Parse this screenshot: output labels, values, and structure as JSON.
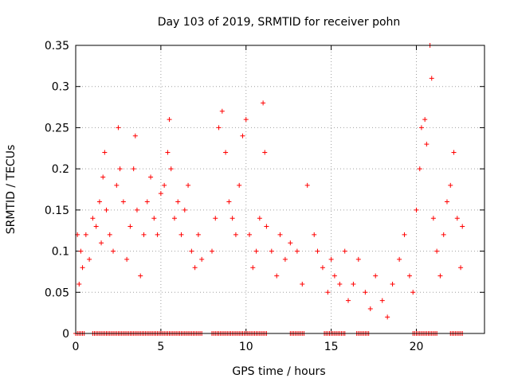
{
  "chart_data": {
    "type": "scatter",
    "title": "Day 103 of 2019, SRMTID for receiver pohn",
    "xlabel": "GPS time / hours",
    "ylabel": "SRMTID / TECUs",
    "xlim": [
      0,
      24
    ],
    "ylim": [
      0,
      0.35
    ],
    "xticks": [
      "0",
      "5",
      "10",
      "15",
      "20"
    ],
    "yticks": [
      "0",
      "0.05",
      "0.1",
      "0.15",
      "0.2",
      "0.25",
      "0.3",
      "0.35"
    ],
    "grid": true,
    "marker": "plus",
    "series": [
      {
        "name": "SRMTID",
        "color": "#ff0000",
        "points": [
          [
            0.1,
            0.12
          ],
          [
            0.2,
            0.06
          ],
          [
            0.3,
            0.1
          ],
          [
            0.4,
            0.08
          ],
          [
            0.6,
            0.12
          ],
          [
            0.8,
            0.09
          ],
          [
            1.0,
            0.14
          ],
          [
            1.2,
            0.13
          ],
          [
            1.4,
            0.16
          ],
          [
            1.5,
            0.11
          ],
          [
            1.6,
            0.19
          ],
          [
            1.7,
            0.22
          ],
          [
            1.8,
            0.15
          ],
          [
            2.0,
            0.12
          ],
          [
            2.2,
            0.1
          ],
          [
            2.4,
            0.18
          ],
          [
            2.5,
            0.25
          ],
          [
            2.6,
            0.2
          ],
          [
            2.8,
            0.16
          ],
          [
            3.0,
            0.09
          ],
          [
            3.2,
            0.13
          ],
          [
            3.4,
            0.2
          ],
          [
            3.5,
            0.24
          ],
          [
            3.6,
            0.15
          ],
          [
            3.8,
            0.07
          ],
          [
            4.0,
            0.12
          ],
          [
            4.2,
            0.16
          ],
          [
            4.4,
            0.19
          ],
          [
            4.6,
            0.14
          ],
          [
            4.8,
            0.12
          ],
          [
            5.0,
            0.17
          ],
          [
            5.2,
            0.18
          ],
          [
            5.4,
            0.22
          ],
          [
            5.5,
            0.26
          ],
          [
            5.6,
            0.2
          ],
          [
            5.8,
            0.14
          ],
          [
            6.0,
            0.16
          ],
          [
            6.2,
            0.12
          ],
          [
            6.4,
            0.15
          ],
          [
            6.6,
            0.18
          ],
          [
            6.8,
            0.1
          ],
          [
            7.0,
            0.08
          ],
          [
            7.2,
            0.12
          ],
          [
            7.4,
            0.09
          ],
          [
            8.0,
            0.1
          ],
          [
            8.2,
            0.14
          ],
          [
            8.4,
            0.25
          ],
          [
            8.6,
            0.27
          ],
          [
            8.8,
            0.22
          ],
          [
            9.0,
            0.16
          ],
          [
            9.2,
            0.14
          ],
          [
            9.4,
            0.12
          ],
          [
            9.6,
            0.18
          ],
          [
            9.8,
            0.24
          ],
          [
            10.0,
            0.26
          ],
          [
            10.2,
            0.12
          ],
          [
            10.4,
            0.08
          ],
          [
            10.6,
            0.1
          ],
          [
            10.8,
            0.14
          ],
          [
            11.0,
            0.28
          ],
          [
            11.1,
            0.22
          ],
          [
            11.2,
            0.13
          ],
          [
            11.5,
            0.1
          ],
          [
            11.8,
            0.07
          ],
          [
            12.0,
            0.12
          ],
          [
            12.3,
            0.09
          ],
          [
            12.6,
            0.11
          ],
          [
            13.0,
            0.1
          ],
          [
            13.3,
            0.06
          ],
          [
            13.6,
            0.18
          ],
          [
            14.0,
            0.12
          ],
          [
            14.2,
            0.1
          ],
          [
            14.5,
            0.08
          ],
          [
            14.8,
            0.05
          ],
          [
            15.0,
            0.09
          ],
          [
            15.2,
            0.07
          ],
          [
            15.5,
            0.06
          ],
          [
            15.8,
            0.1
          ],
          [
            16.0,
            0.04
          ],
          [
            16.3,
            0.06
          ],
          [
            16.6,
            0.09
          ],
          [
            17.0,
            0.05
          ],
          [
            17.3,
            0.03
          ],
          [
            17.6,
            0.07
          ],
          [
            18.0,
            0.04
          ],
          [
            18.3,
            0.02
          ],
          [
            18.6,
            0.06
          ],
          [
            19.0,
            0.09
          ],
          [
            19.3,
            0.12
          ],
          [
            19.6,
            0.07
          ],
          [
            19.8,
            0.05
          ],
          [
            20.0,
            0.15
          ],
          [
            20.2,
            0.2
          ],
          [
            20.3,
            0.25
          ],
          [
            20.5,
            0.26
          ],
          [
            20.6,
            0.23
          ],
          [
            20.8,
            0.35
          ],
          [
            20.9,
            0.31
          ],
          [
            21.0,
            0.14
          ],
          [
            21.2,
            0.1
          ],
          [
            21.4,
            0.07
          ],
          [
            21.6,
            0.12
          ],
          [
            21.8,
            0.16
          ],
          [
            22.0,
            0.18
          ],
          [
            22.2,
            0.22
          ],
          [
            22.4,
            0.14
          ],
          [
            22.6,
            0.08
          ],
          [
            22.7,
            0.13
          ]
        ]
      }
    ],
    "zero_band": {
      "y": 0,
      "x_ranges": [
        [
          0,
          0.5
        ],
        [
          1.0,
          7.4
        ],
        [
          8.0,
          11.2
        ],
        [
          12.6,
          13.4
        ],
        [
          14.6,
          15.8
        ],
        [
          16.5,
          17.2
        ],
        [
          19.8,
          21.2
        ],
        [
          22.0,
          22.7
        ]
      ]
    }
  }
}
